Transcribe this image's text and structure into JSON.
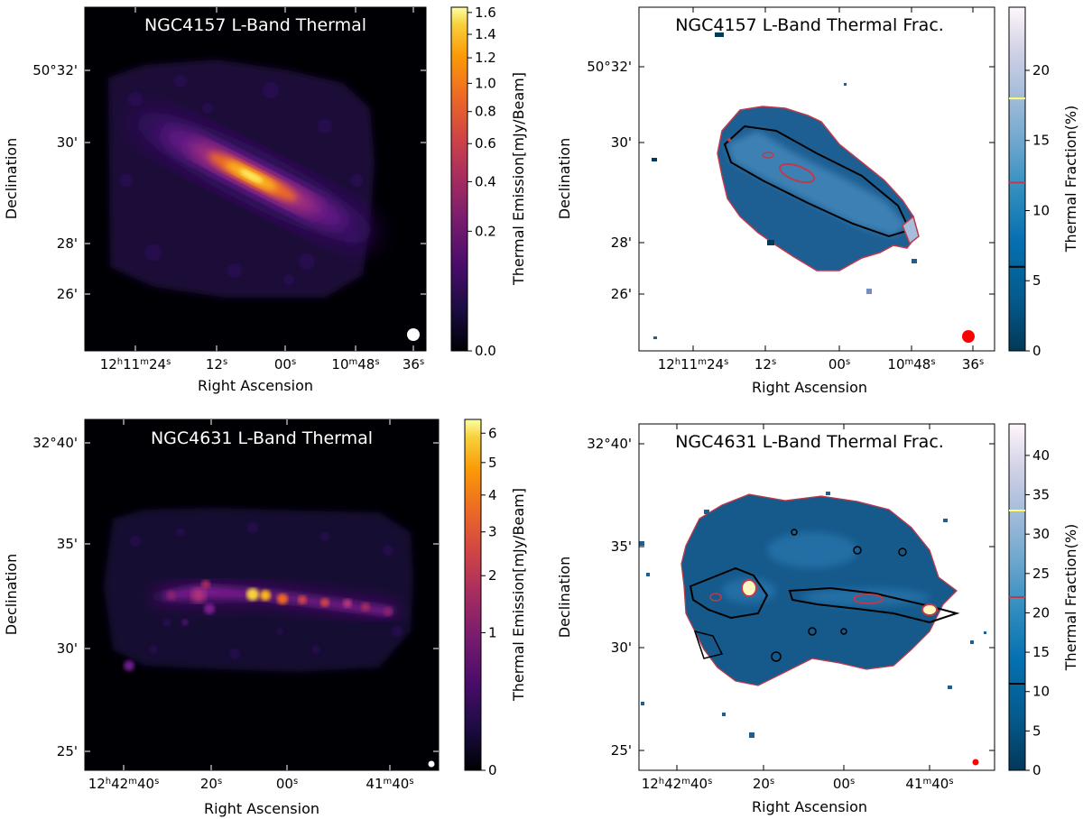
{
  "chart_data": [
    {
      "type": "heatmap",
      "title": "NGC4157 L-Band Thermal",
      "xlabel": "Right Ascension",
      "ylabel": "Declination",
      "xticks": [
        {
          "h": "12",
          "m": "11",
          "s": "24"
        },
        {
          "s": "12"
        },
        {
          "s": "00"
        },
        {
          "m": "10",
          "s": "48"
        },
        {
          "s": "36"
        }
      ],
      "yticks": [
        "50°32'",
        "30'",
        "28'",
        "26'"
      ],
      "colorbar": {
        "label": "Thermal Emission[mJy/Beam]",
        "colormap": "inferno",
        "scale": "sqrt",
        "ticks": [
          0.0,
          0.2,
          0.4,
          0.6,
          0.8,
          1.0,
          1.2,
          1.4,
          1.6
        ],
        "tick_labels": [
          "0.0",
          "0.2",
          "0.4",
          "0.6",
          "0.8",
          "1.0",
          "1.2",
          "1.4",
          "1.6"
        ],
        "vmax": 1.65
      },
      "beam_color": "#ffffff"
    },
    {
      "type": "heatmap",
      "title": "NGC4157 L-Band Thermal Frac.",
      "xlabel": "Right Ascension",
      "ylabel": "Declination",
      "xticks": [
        {
          "h": "12",
          "m": "11",
          "s": "24"
        },
        {
          "s": "12"
        },
        {
          "s": "00"
        },
        {
          "m": "10",
          "s": "48"
        },
        {
          "s": "36"
        }
      ],
      "yticks": [
        "50°32'",
        "30'",
        "28'",
        "26'"
      ],
      "colorbar": {
        "label": "Thermal Fraction(%)",
        "colormap": "PuBu_r",
        "scale": "linear",
        "ticks": [
          0,
          5,
          10,
          15,
          20
        ],
        "tick_labels": [
          "0",
          "5",
          "10",
          "15",
          "20"
        ],
        "vmax": 24.5,
        "contour_levels": [
          {
            "value": 6,
            "color": "#000000"
          },
          {
            "value": 12,
            "color": "#c0394b"
          },
          {
            "value": 18,
            "color": "#ffff66"
          }
        ]
      },
      "beam_color": "#ff0000"
    },
    {
      "type": "heatmap",
      "title": "NGC4631 L-Band Thermal",
      "xlabel": "Right Ascension",
      "ylabel": "Declination",
      "xticks": [
        {
          "h": "12",
          "m": "42",
          "s": "40"
        },
        {
          "s": "20"
        },
        {
          "s": "00"
        },
        {
          "m": "41",
          "s": "40"
        }
      ],
      "yticks": [
        "32°40'",
        "35'",
        "30'",
        "25'"
      ],
      "colorbar": {
        "label": "Thermal Emission[mJy/Beam]",
        "colormap": "inferno",
        "scale": "sqrt",
        "ticks": [
          0,
          1,
          2,
          3,
          4,
          5,
          6
        ],
        "tick_labels": [
          "0",
          "1",
          "2",
          "3",
          "4",
          "5",
          "6"
        ],
        "vmax": 6.5
      },
      "beam_color": "#ffffff"
    },
    {
      "type": "heatmap",
      "title": "NGC4631 L-Band Thermal Frac.",
      "xlabel": "Right Ascension",
      "ylabel": "Declination",
      "xticks": [
        {
          "h": "12",
          "m": "42",
          "s": "40"
        },
        {
          "s": "20"
        },
        {
          "s": "00"
        },
        {
          "m": "41",
          "s": "40"
        }
      ],
      "yticks": [
        "32°40'",
        "35'",
        "30'",
        "25'"
      ],
      "colorbar": {
        "label": "Thermal Fraction(%)",
        "colormap": "PuBu_r",
        "scale": "linear",
        "ticks": [
          0,
          5,
          10,
          15,
          20,
          25,
          30,
          35,
          40
        ],
        "tick_labels": [
          "0",
          "5",
          "10",
          "15",
          "20",
          "25",
          "30",
          "35",
          "40"
        ],
        "vmax": 44,
        "contour_levels": [
          {
            "value": 11,
            "color": "#000000"
          },
          {
            "value": 22,
            "color": "#c0394b"
          },
          {
            "value": 33,
            "color": "#ffff66"
          }
        ]
      },
      "beam_color": "#ff0000"
    }
  ]
}
